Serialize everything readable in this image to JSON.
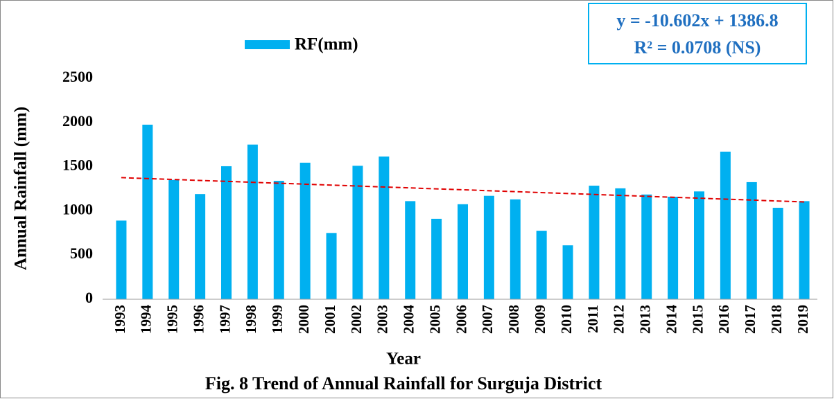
{
  "chart_data": {
    "type": "bar",
    "caption": "Fig. 8 Trend of Annual Rainfall for Surguja District",
    "y_label": "Annual Rainfall (mm)",
    "x_label": "Year",
    "equation": [
      "y = -10.602x + 1386.8",
      "R² = 0.0708  (NS)"
    ],
    "categories": [
      "1993",
      "1994",
      "1995",
      "1996",
      "1997",
      "1998",
      "1999",
      "2000",
      "2001",
      "2002",
      "2003",
      "2004",
      "2005",
      "2006",
      "2007",
      "2008",
      "2009",
      "2010",
      "2011",
      "2012",
      "2013",
      "2014",
      "2015",
      "2016",
      "2017",
      "2018",
      "2019"
    ],
    "series": [
      {
        "name": "RF(mm)",
        "color": "#00b0f0",
        "values": [
          890,
          1975,
          1350,
          1190,
          1505,
          1750,
          1340,
          1545,
          750,
          1510,
          1615,
          1110,
          910,
          1075,
          1170,
          1130,
          775,
          610,
          1285,
          1255,
          1185,
          1160,
          1220,
          1670,
          1325,
          1035,
          1110
        ]
      }
    ],
    "trend_line": {
      "color": "#e00000",
      "values": [
        1376,
        1101
      ]
    },
    "ylim": [
      0,
      2500
    ],
    "yticks": [
      0,
      500,
      1000,
      1500,
      2000,
      2500
    ]
  }
}
